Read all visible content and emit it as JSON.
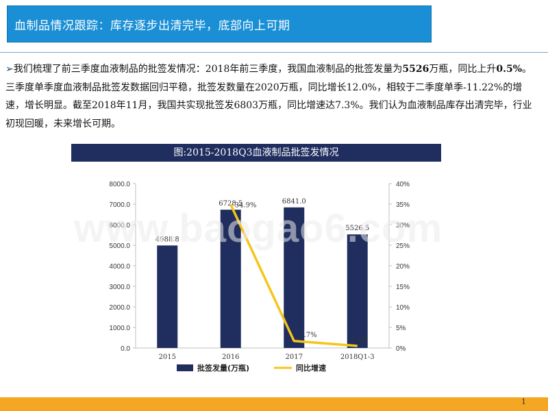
{
  "header": {
    "title": "血制品情况跟踪：库存逐步出清完毕，底部向上可期"
  },
  "paragraph": {
    "arrow": "➢",
    "seg1": "我们梳理了前三季度血液制品的批签发情况：2018年前三季度，我国血液制品的批签发量为",
    "bold1": "5526",
    "seg2": "万瓶，同比上升",
    "bold2": "0.5%",
    "seg3": "。三季度单季度血液制品批签发数据回归平稳，批签发数量在2020万瓶，同比增长12.0%，相较于二季度单季-11.22%的增速，增长明显。截至2018年11月，我国共实现批签发6803万瓶，同比增速达7.3%。我们认为血液制品库存出清完毕，行业初现回暖，未来增长可期。"
  },
  "chart_title": "图:2015-2018Q3血液制品批签发情况",
  "watermark": "www.baogao6.com",
  "page_number": "1",
  "colors": {
    "title_bg": "#1a8fd5",
    "chart_title_bg": "#1f2e5e",
    "bar": "#1f2e5e",
    "line": "#f5c518",
    "footer": "#f5a623"
  },
  "chart_data": {
    "type": "bar",
    "categories": [
      "2015",
      "2016",
      "2017",
      "2018Q1-3"
    ],
    "series": [
      {
        "name": "批签发量(万瓶)",
        "values": [
          4988.8,
          6728.5,
          6841.0,
          5526.5
        ],
        "labels": [
          "4988.8",
          "6728.5",
          "6841.0",
          "5526.5"
        ],
        "axis": "left",
        "kind": "bar"
      },
      {
        "name": "同比增速",
        "values": [
          null,
          34.9,
          1.7,
          0.5
        ],
        "labels": [
          "",
          "34.9%",
          "1.7%",
          "0.5%"
        ],
        "axis": "right",
        "kind": "line"
      }
    ],
    "left_axis": {
      "min": 0,
      "max": 8000,
      "ticks": [
        "0.0",
        "1000.0",
        "2000.0",
        "3000.0",
        "4000.0",
        "5000.0",
        "6000.0",
        "7000.0",
        "8000.0"
      ]
    },
    "right_axis": {
      "min": 0,
      "max": 40,
      "ticks": [
        "0%",
        "5%",
        "10%",
        "15%",
        "20%",
        "25%",
        "30%",
        "35%",
        "40%"
      ]
    },
    "legend": "bottom"
  }
}
